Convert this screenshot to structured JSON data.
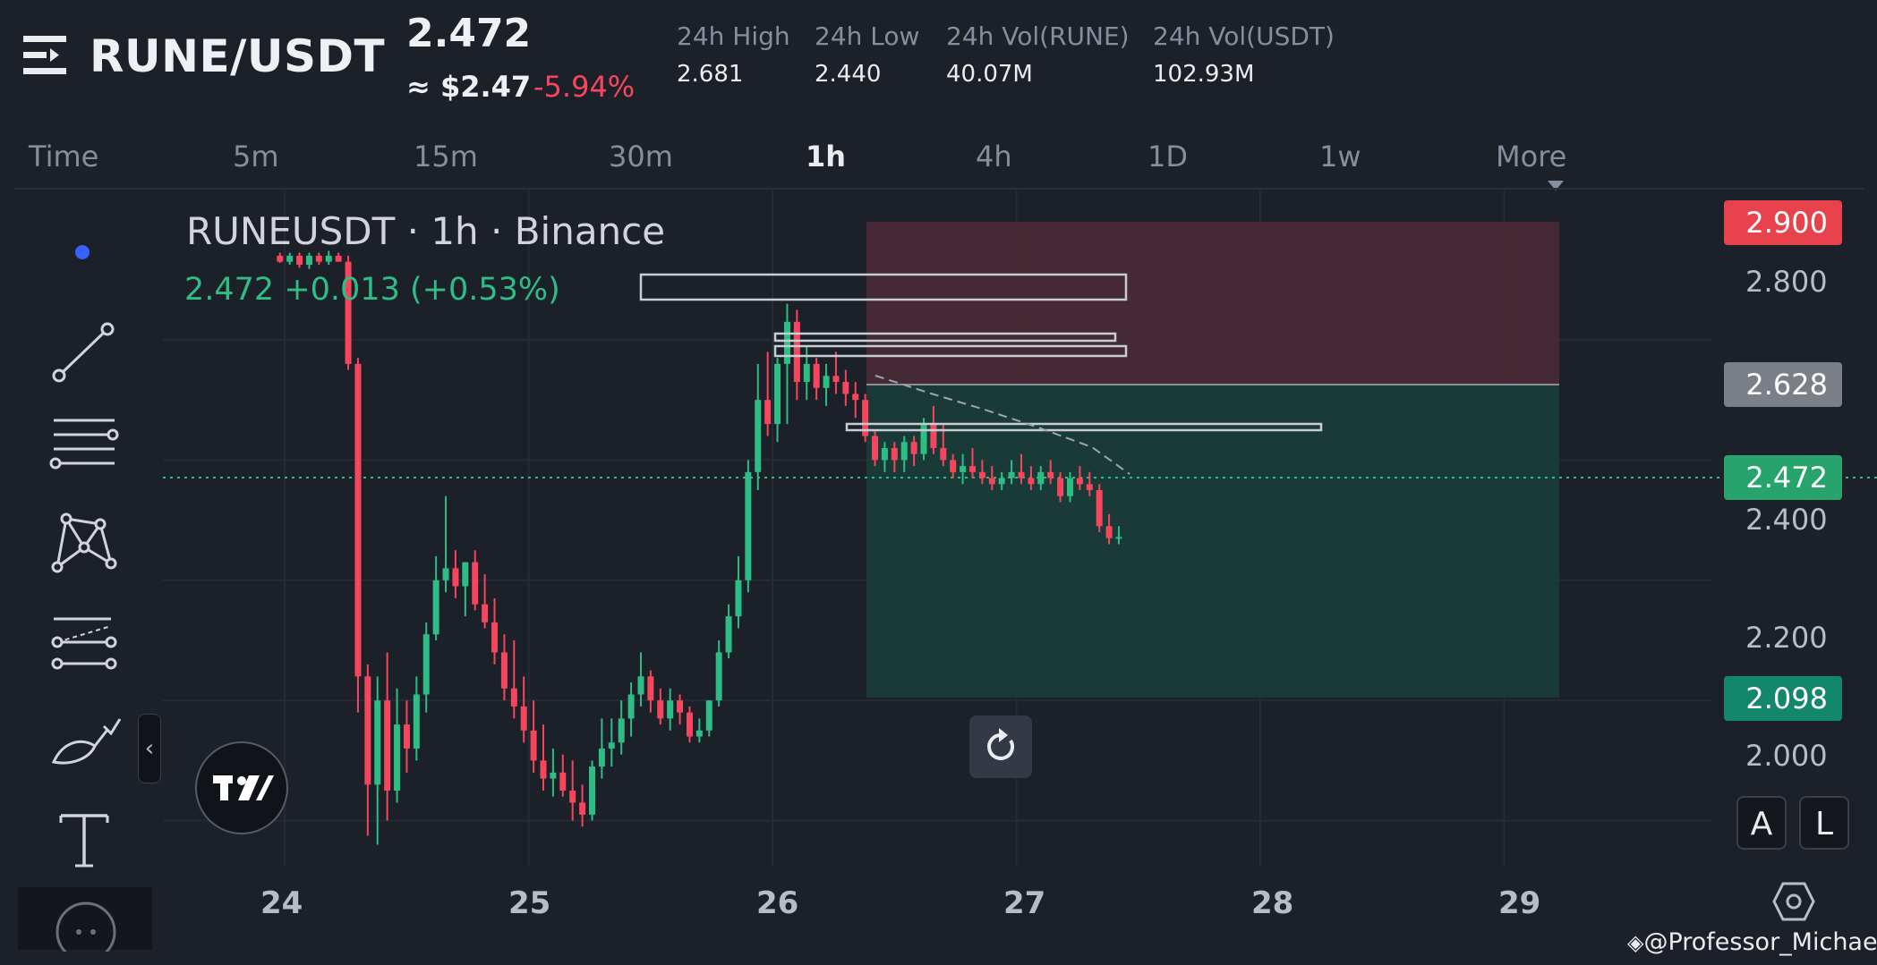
{
  "header": {
    "pair": "RUNE/USDT",
    "last_price": "2.472",
    "usd_price": "≈ $2.47",
    "change_pct": "-5.94%",
    "stats": [
      {
        "label": "24h High",
        "value": "2.681"
      },
      {
        "label": "24h Low",
        "value": "2.440"
      },
      {
        "label": "24h Vol(RUNE)",
        "value": "40.07M"
      },
      {
        "label": "24h Vol(USDT)",
        "value": "102.93M"
      }
    ]
  },
  "timeframes": [
    "Time",
    "5m",
    "15m",
    "30m",
    "1h",
    "4h",
    "1D",
    "1w",
    "More"
  ],
  "active_timeframe": "1h",
  "chart": {
    "title": "RUNEUSDT · 1h · Binance",
    "ohlc": "2.472  +0.013 (+0.53%)",
    "price_tags": {
      "stop": "2.900",
      "entry": "2.628",
      "current": "2.472",
      "target": "2.098"
    },
    "y_axis_labels": [
      "2.800",
      "2.400",
      "2.200",
      "2.000"
    ],
    "x_axis_labels": [
      "24",
      "25",
      "26",
      "27",
      "28",
      "29"
    ],
    "buttons": {
      "auto": "A",
      "log": "L"
    },
    "watermark": "@Professor_Michael"
  },
  "colors": {
    "up": "#2ebd85",
    "down": "#f6465d",
    "background": "#1b2029",
    "stop_zone": "#4a2a35",
    "target_zone": "#1b3d3a",
    "muted_text": "#848e9c"
  },
  "icons": [
    "menu-icon",
    "dot-icon",
    "trend-line-icon",
    "horizontal-lines-icon",
    "pattern-icon",
    "fib-icon",
    "brush-icon",
    "text-icon",
    "collapse-chevron-icon",
    "tradingview-logo-icon",
    "reset-icon",
    "settings-hexagon-icon",
    "binance-logo-icon"
  ],
  "chart_data": {
    "type": "candlestick",
    "title": "RUNEUSDT · 1h · Binance",
    "x_ticks": [
      "24",
      "25",
      "26",
      "27",
      "28",
      "29"
    ],
    "y_ticks": [
      2.0,
      2.2,
      2.4,
      2.8
    ],
    "ylim": [
      1.925,
      3.05
    ],
    "current_price": 2.472,
    "position_tool": {
      "entry": 2.628,
      "stop": 2.9,
      "target": 2.098
    },
    "candles": [
      [
        23.98,
        2.94,
        2.945,
        2.928,
        2.93
      ],
      [
        24.02,
        2.93,
        2.945,
        2.925,
        2.94
      ],
      [
        24.06,
        2.94,
        2.945,
        2.92,
        2.925
      ],
      [
        24.1,
        2.925,
        2.945,
        2.918,
        2.94
      ],
      [
        24.14,
        2.94,
        2.945,
        2.925,
        2.93
      ],
      [
        24.18,
        2.93,
        2.948,
        2.925,
        2.94
      ],
      [
        24.22,
        2.94,
        2.945,
        2.93,
        2.93
      ],
      [
        24.26,
        2.93,
        2.94,
        2.75,
        2.76
      ],
      [
        24.3,
        2.76,
        2.77,
        2.18,
        2.24
      ],
      [
        24.34,
        2.24,
        2.26,
        1.975,
        2.06
      ],
      [
        24.38,
        2.06,
        2.24,
        1.96,
        2.2
      ],
      [
        24.42,
        2.2,
        2.28,
        2.0,
        2.05
      ],
      [
        24.46,
        2.05,
        2.22,
        2.03,
        2.16
      ],
      [
        24.5,
        2.16,
        2.2,
        2.08,
        2.12
      ],
      [
        24.54,
        2.12,
        2.24,
        2.1,
        2.21
      ],
      [
        24.58,
        2.21,
        2.33,
        2.18,
        2.31
      ],
      [
        24.62,
        2.31,
        2.44,
        2.3,
        2.4
      ],
      [
        24.66,
        2.4,
        2.54,
        2.38,
        2.42
      ],
      [
        24.7,
        2.42,
        2.45,
        2.37,
        2.39
      ],
      [
        24.74,
        2.39,
        2.43,
        2.34,
        2.43
      ],
      [
        24.78,
        2.43,
        2.45,
        2.35,
        2.36
      ],
      [
        24.82,
        2.36,
        2.41,
        2.32,
        2.33
      ],
      [
        24.86,
        2.33,
        2.37,
        2.26,
        2.28
      ],
      [
        24.9,
        2.28,
        2.31,
        2.2,
        2.22
      ],
      [
        24.94,
        2.22,
        2.3,
        2.17,
        2.19
      ],
      [
        24.98,
        2.19,
        2.24,
        2.13,
        2.15
      ],
      [
        25.02,
        2.15,
        2.2,
        2.08,
        2.1
      ],
      [
        25.06,
        2.1,
        2.16,
        2.05,
        2.07
      ],
      [
        25.1,
        2.07,
        2.12,
        2.04,
        2.08
      ],
      [
        25.14,
        2.08,
        2.11,
        2.04,
        2.05
      ],
      [
        25.18,
        2.05,
        2.1,
        2.0,
        2.03
      ],
      [
        25.22,
        2.03,
        2.06,
        1.99,
        2.01
      ],
      [
        25.26,
        2.01,
        2.1,
        2.0,
        2.09
      ],
      [
        25.3,
        2.09,
        2.17,
        2.07,
        2.12
      ],
      [
        25.34,
        2.12,
        2.17,
        2.09,
        2.13
      ],
      [
        25.38,
        2.13,
        2.2,
        2.11,
        2.17
      ],
      [
        25.42,
        2.17,
        2.23,
        2.14,
        2.21
      ],
      [
        25.46,
        2.21,
        2.28,
        2.19,
        2.24
      ],
      [
        25.5,
        2.24,
        2.25,
        2.18,
        2.2
      ],
      [
        25.54,
        2.2,
        2.22,
        2.16,
        2.17
      ],
      [
        25.58,
        2.17,
        2.22,
        2.15,
        2.2
      ],
      [
        25.62,
        2.2,
        2.21,
        2.16,
        2.18
      ],
      [
        25.66,
        2.18,
        2.19,
        2.13,
        2.14
      ],
      [
        25.7,
        2.14,
        2.17,
        2.13,
        2.15
      ],
      [
        25.74,
        2.15,
        2.2,
        2.14,
        2.2
      ],
      [
        25.78,
        2.2,
        2.3,
        2.19,
        2.28
      ],
      [
        25.82,
        2.28,
        2.36,
        2.27,
        2.34
      ],
      [
        25.86,
        2.34,
        2.44,
        2.32,
        2.4
      ],
      [
        25.9,
        2.4,
        2.6,
        2.38,
        2.58
      ],
      [
        25.94,
        2.58,
        2.76,
        2.55,
        2.7
      ],
      [
        25.98,
        2.7,
        2.78,
        2.64,
        2.66
      ],
      [
        26.02,
        2.66,
        2.77,
        2.63,
        2.76
      ],
      [
        26.06,
        2.76,
        2.86,
        2.66,
        2.83
      ],
      [
        26.1,
        2.83,
        2.85,
        2.7,
        2.73
      ],
      [
        26.14,
        2.73,
        2.79,
        2.7,
        2.76
      ],
      [
        26.18,
        2.76,
        2.77,
        2.7,
        2.72
      ],
      [
        26.22,
        2.72,
        2.76,
        2.69,
        2.74
      ],
      [
        26.26,
        2.74,
        2.78,
        2.71,
        2.73
      ],
      [
        26.3,
        2.73,
        2.75,
        2.69,
        2.71
      ],
      [
        26.34,
        2.71,
        2.73,
        2.67,
        2.7
      ],
      [
        26.38,
        2.7,
        2.71,
        2.63,
        2.64
      ],
      [
        26.42,
        2.64,
        2.65,
        2.59,
        2.6
      ],
      [
        26.46,
        2.6,
        2.63,
        2.58,
        2.62
      ],
      [
        26.5,
        2.62,
        2.63,
        2.58,
        2.6
      ],
      [
        26.54,
        2.6,
        2.64,
        2.58,
        2.63
      ],
      [
        26.58,
        2.63,
        2.64,
        2.59,
        2.61
      ],
      [
        26.62,
        2.61,
        2.67,
        2.6,
        2.66
      ],
      [
        26.66,
        2.66,
        2.69,
        2.61,
        2.62
      ],
      [
        26.7,
        2.62,
        2.66,
        2.59,
        2.6
      ],
      [
        26.74,
        2.6,
        2.61,
        2.57,
        2.58
      ],
      [
        26.78,
        2.58,
        2.61,
        2.56,
        2.59
      ],
      [
        26.82,
        2.59,
        2.62,
        2.57,
        2.58
      ],
      [
        26.86,
        2.58,
        2.6,
        2.56,
        2.57
      ],
      [
        26.9,
        2.57,
        2.59,
        2.55,
        2.56
      ],
      [
        26.94,
        2.56,
        2.58,
        2.55,
        2.57
      ],
      [
        26.98,
        2.57,
        2.6,
        2.56,
        2.58
      ],
      [
        27.02,
        2.58,
        2.61,
        2.56,
        2.57
      ],
      [
        27.06,
        2.57,
        2.59,
        2.55,
        2.56
      ],
      [
        27.1,
        2.56,
        2.59,
        2.55,
        2.58
      ],
      [
        27.14,
        2.58,
        2.6,
        2.56,
        2.57
      ],
      [
        27.18,
        2.57,
        2.58,
        2.53,
        2.54
      ],
      [
        27.22,
        2.54,
        2.58,
        2.53,
        2.57
      ],
      [
        27.26,
        2.57,
        2.59,
        2.55,
        2.56
      ],
      [
        27.3,
        2.56,
        2.58,
        2.54,
        2.55
      ],
      [
        27.34,
        2.55,
        2.56,
        2.48,
        2.49
      ],
      [
        27.38,
        2.49,
        2.51,
        2.46,
        2.47
      ],
      [
        27.42,
        2.47,
        2.49,
        2.46,
        2.472
      ]
    ]
  }
}
